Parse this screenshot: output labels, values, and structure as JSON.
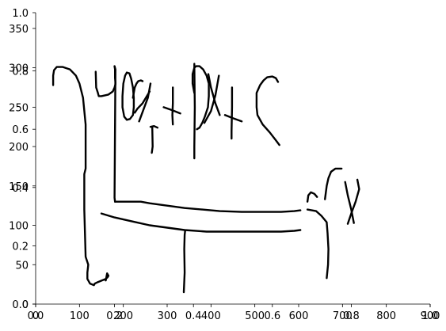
{
  "chart_data": {
    "type": "line",
    "note_axes": [
      {
        "x_ticks": [
          "0.0",
          "0.2",
          "0.4",
          "0.6",
          "0.8",
          "1.0"
        ],
        "y_ticks": [
          "0.0",
          "0.2",
          "0.4",
          "0.6",
          "0.8",
          "1.0"
        ],
        "xlim": [
          0,
          1
        ],
        "ylim": [
          0,
          1
        ]
      },
      {
        "x_ticks": [
          "0",
          "100",
          "200",
          "300",
          "400",
          "500",
          "600",
          "700",
          "800",
          "900"
        ],
        "y_ticks": [
          "0",
          "50",
          "100",
          "150",
          "200",
          "250",
          "300",
          "350"
        ],
        "xlim": [
          0,
          900
        ],
        "ylim": [
          0,
          370
        ]
      }
    ],
    "strokes": [
      {
        "id": "bracket-left",
        "points": [
          [
            40,
            278
          ],
          [
            40,
            290
          ],
          [
            42,
            297
          ],
          [
            48,
            301
          ],
          [
            62,
            301
          ],
          [
            78,
            298
          ],
          [
            92,
            290
          ],
          [
            100,
            280
          ],
          [
            108,
            262
          ],
          [
            114,
            228
          ],
          [
            114,
            172
          ],
          [
            111,
            165
          ],
          [
            111,
            120
          ],
          [
            114,
            60
          ],
          [
            120,
            50
          ],
          [
            118,
            40
          ],
          [
            118,
            32
          ],
          [
            124,
            26
          ],
          [
            133,
            24
          ],
          [
            135,
            26
          ],
          [
            142,
            28
          ],
          [
            160,
            32
          ],
          [
            164,
            34
          ],
          [
            166,
            36
          ],
          [
            163,
            39
          ],
          [
            160,
            30
          ]
        ]
      },
      {
        "id": "stroke-b-1",
        "points": [
          [
            137,
            295
          ],
          [
            138,
            275
          ],
          [
            142,
            268
          ],
          [
            144,
            264
          ],
          [
            150,
            264
          ],
          [
            166,
            266
          ],
          [
            176,
            270
          ],
          [
            180,
            275
          ],
          [
            182,
            279
          ],
          [
            182,
            282
          ],
          [
            181,
            287
          ],
          [
            181,
            298
          ],
          [
            180,
            302
          ]
        ]
      },
      {
        "id": "stroke-b-2",
        "points": [
          [
            180,
            302
          ],
          [
            182,
            298
          ],
          [
            180,
            135
          ],
          [
            181,
            130
          ]
        ]
      },
      {
        "id": "stroke-b-3",
        "points": [
          [
            181,
            130
          ],
          [
            200,
            130
          ],
          [
            240,
            130
          ],
          [
            260,
            128
          ],
          [
            300,
            125
          ],
          [
            340,
            122
          ],
          [
            380,
            120
          ],
          [
            420,
            118
          ],
          [
            470,
            117
          ],
          [
            520,
            117
          ],
          [
            560,
            117
          ],
          [
            590,
            118
          ],
          [
            604,
            119
          ]
        ]
      },
      {
        "id": "stroke-b-4",
        "points": [
          [
            150,
            115
          ],
          [
            180,
            110
          ],
          [
            220,
            105
          ],
          [
            260,
            100
          ],
          [
            300,
            97
          ],
          [
            340,
            94
          ],
          [
            390,
            92
          ],
          [
            440,
            92
          ],
          [
            500,
            92
          ],
          [
            560,
            92
          ],
          [
            590,
            93
          ],
          [
            604,
            94
          ]
        ]
      },
      {
        "id": "stroke-bigP-1",
        "points": [
          [
            200,
            244
          ],
          [
            198,
            250
          ],
          [
            198,
            264
          ],
          [
            200,
            280
          ],
          [
            204,
            290
          ],
          [
            208,
            294
          ],
          [
            214,
            293
          ],
          [
            218,
            286
          ],
          [
            222,
            275
          ],
          [
            224,
            262
          ],
          [
            224,
            250
          ],
          [
            222,
            240
          ],
          [
            215,
            235
          ],
          [
            208,
            234
          ],
          [
            202,
            238
          ],
          [
            200,
            244
          ]
        ]
      },
      {
        "id": "stroke-bigP-2",
        "points": [
          [
            222,
            262
          ],
          [
            226,
            275
          ],
          [
            230,
            280
          ],
          [
            234,
            283
          ],
          [
            240,
            284
          ],
          [
            244,
            283
          ]
        ]
      },
      {
        "id": "stroke-x1-1",
        "points": [
          [
            236,
            232
          ],
          [
            248,
            250
          ],
          [
            256,
            262
          ],
          [
            262,
            280
          ]
        ]
      },
      {
        "id": "stroke-x1-2",
        "points": [
          [
            226,
            243
          ],
          [
            232,
            248
          ],
          [
            244,
            255
          ],
          [
            260,
            270
          ]
        ]
      },
      {
        "id": "stroke-x1-3",
        "points": [
          [
            262,
            225
          ],
          [
            270,
            226
          ],
          [
            278,
            224
          ]
        ]
      },
      {
        "id": "stroke-x1-4",
        "points": [
          [
            266,
            225
          ],
          [
            267,
            200
          ],
          [
            265,
            192
          ]
        ]
      },
      {
        "id": "stroke-plus1-1",
        "points": [
          [
            292,
            250
          ],
          [
            312,
            246
          ],
          [
            330,
            242
          ]
        ]
      },
      {
        "id": "stroke-plus1-2",
        "points": [
          [
            313,
            275
          ],
          [
            313,
            255
          ],
          [
            312,
            240
          ],
          [
            313,
            228
          ]
        ]
      },
      {
        "id": "stroke-P-1",
        "points": [
          [
            362,
            268
          ],
          [
            358,
            280
          ],
          [
            358,
            292
          ],
          [
            362,
            300
          ],
          [
            366,
            302
          ],
          [
            374,
            302
          ],
          [
            382,
            298
          ],
          [
            390,
            290
          ],
          [
            395,
            280
          ],
          [
            395,
            264
          ],
          [
            393,
            250
          ],
          [
            386,
            238
          ],
          [
            380,
            230
          ],
          [
            374,
            224
          ],
          [
            368,
            222
          ]
        ]
      },
      {
        "id": "stroke-P-2",
        "points": [
          [
            362,
            305
          ],
          [
            363,
            250
          ],
          [
            362,
            200
          ],
          [
            362,
            185
          ]
        ]
      },
      {
        "id": "stroke-x2-1",
        "points": [
          [
            394,
            292
          ],
          [
            400,
            275
          ],
          [
            410,
            255
          ],
          [
            420,
            240
          ]
        ]
      },
      {
        "id": "stroke-x2-2",
        "points": [
          [
            418,
            290
          ],
          [
            410,
            265
          ],
          [
            400,
            245
          ],
          [
            385,
            230
          ]
        ]
      },
      {
        "id": "stroke-plus2-1",
        "points": [
          [
            432,
            240
          ],
          [
            450,
            236
          ],
          [
            470,
            232
          ]
        ]
      },
      {
        "id": "stroke-plus2-2",
        "points": [
          [
            448,
            275
          ],
          [
            448,
            250
          ],
          [
            447,
            220
          ],
          [
            447,
            210
          ]
        ]
      },
      {
        "id": "stroke-c",
        "points": [
          [
            553,
            282
          ],
          [
            548,
            287
          ],
          [
            540,
            289
          ],
          [
            528,
            288
          ],
          [
            520,
            284
          ],
          [
            512,
            278
          ],
          [
            504,
            268
          ],
          [
            504,
            250
          ],
          [
            506,
            240
          ],
          [
            518,
            228
          ],
          [
            534,
            218
          ],
          [
            548,
            208
          ],
          [
            556,
            202
          ]
        ]
      },
      {
        "id": "stroke-vertical",
        "points": [
          [
            341,
            93
          ],
          [
            340,
            88
          ],
          [
            339,
            70
          ],
          [
            340,
            40
          ],
          [
            338,
            15
          ]
        ]
      },
      {
        "id": "stroke-x3-1",
        "points": [
          [
            620,
            120
          ],
          [
            640,
            118
          ],
          [
            652,
            112
          ],
          [
            664,
            104
          ],
          [
            666,
            90
          ],
          [
            668,
            70
          ],
          [
            667,
            50
          ],
          [
            664,
            33
          ]
        ]
      },
      {
        "id": "stroke-x3-2",
        "points": [
          [
            620,
            130
          ],
          [
            622,
            138
          ],
          [
            628,
            142
          ],
          [
            636,
            140
          ],
          [
            642,
            136
          ]
        ]
      },
      {
        "id": "stroke-x3-3",
        "points": [
          [
            660,
            133
          ],
          [
            664,
            150
          ],
          [
            668,
            160
          ],
          [
            674,
            168
          ],
          [
            684,
            172
          ],
          [
            698,
            172
          ]
        ]
      },
      {
        "id": "stroke-x4-1",
        "points": [
          [
            706,
            155
          ],
          [
            712,
            138
          ],
          [
            720,
            120
          ],
          [
            726,
            103
          ]
        ]
      },
      {
        "id": "stroke-x4-2",
        "points": [
          [
            712,
            102
          ],
          [
            720,
            115
          ],
          [
            730,
            130
          ],
          [
            738,
            146
          ],
          [
            734,
            158
          ]
        ]
      }
    ]
  }
}
